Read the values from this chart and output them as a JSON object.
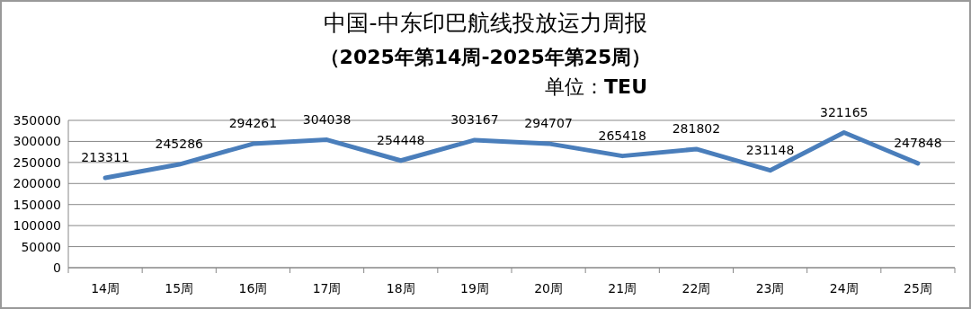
{
  "chart_data": {
    "type": "line",
    "title": "中国-中东印巴航线投放运力周报",
    "subtitle": "（2025年第14周-2025年第25周）",
    "annotations": [
      "单位：**TEU**"
    ],
    "categories": [
      "14周",
      "15周",
      "16周",
      "17周",
      "18周",
      "19周",
      "20周",
      "21周",
      "22周",
      "23周",
      "24周",
      "25周"
    ],
    "series": [
      {
        "color": "#4a7ebb",
        "values": [
          213311,
          245286,
          294261,
          304038,
          254448,
          303167,
          294707,
          265418,
          281802,
          231148,
          321165,
          247848
        ]
      }
    ],
    "ylim": [
      0,
      350000
    ],
    "yticks": [
      0,
      50000,
      100000,
      150000,
      200000,
      250000,
      300000,
      350000
    ],
    "grid": "y",
    "data_labels": true,
    "marker": "none",
    "line_style": "solid"
  }
}
